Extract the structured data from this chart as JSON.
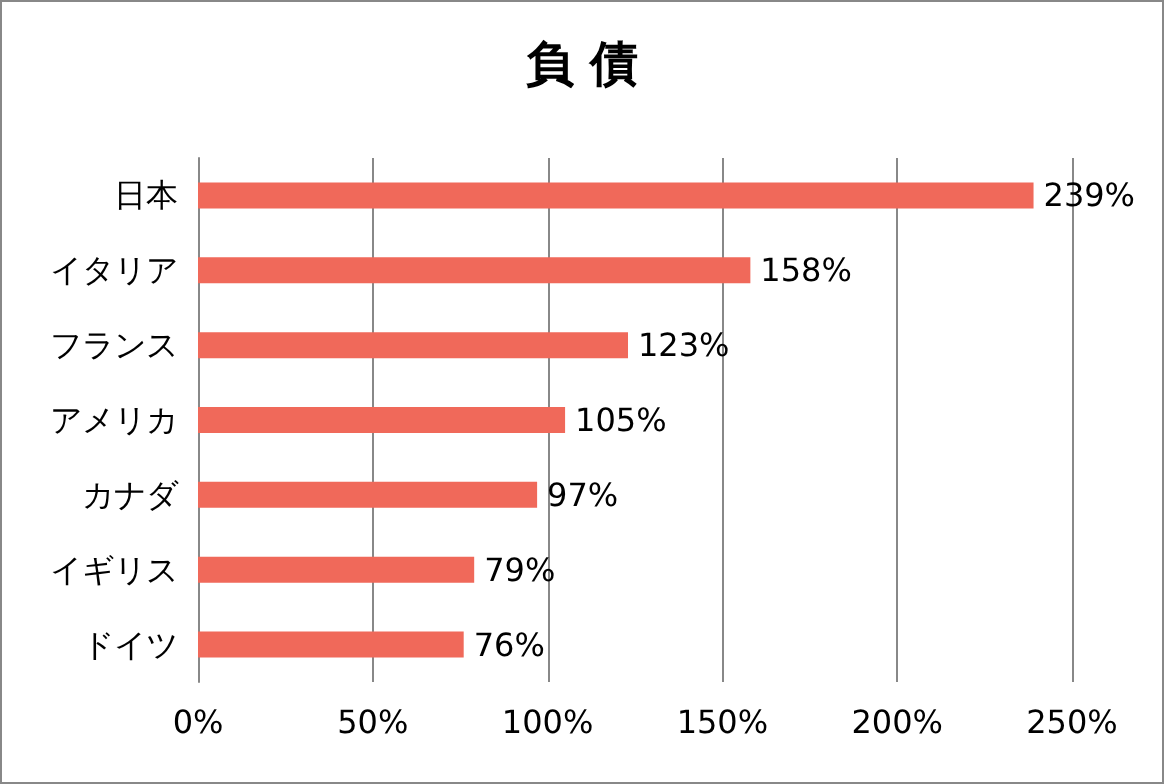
{
  "chart_data": {
    "type": "bar",
    "title": "負 債",
    "orientation": "horizontal",
    "categories": [
      "日本",
      "イタリア",
      "フランス",
      "アメリカ",
      "カナダ",
      "イギリス",
      "ドイツ"
    ],
    "values": [
      239,
      158,
      123,
      105,
      97,
      79,
      76
    ],
    "value_labels": [
      "239%",
      "158%",
      "123%",
      "105%",
      "97%",
      "79%",
      "76%"
    ],
    "color": "#f0695a",
    "xlim": [
      0,
      250
    ],
    "xticks": [
      {
        "value": 0,
        "label": "0%"
      },
      {
        "value": 50,
        "label": "50%"
      },
      {
        "value": 100,
        "label": "100%"
      },
      {
        "value": 150,
        "label": "150%"
      },
      {
        "value": 200,
        "label": "200%"
      },
      {
        "value": 250,
        "label": "250%"
      }
    ],
    "grid": "x"
  }
}
